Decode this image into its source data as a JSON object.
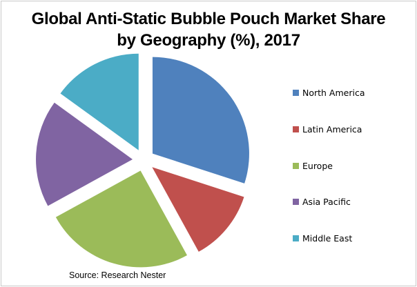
{
  "chart_data": {
    "type": "pie",
    "title": "Global Anti-Static Bubble Pouch Market Share by Geography (%), 2017",
    "title_lines": [
      "Global Anti-Static Bubble Pouch Market Share",
      "by Geography (%), 2017"
    ],
    "categories": [
      "North America",
      "Latin America",
      "Europe",
      "Asia Pacific",
      "Middle East"
    ],
    "values": [
      30,
      12,
      25,
      18,
      15
    ],
    "colors": [
      "#4F81BD",
      "#C0504D",
      "#9BBB59",
      "#8064A2",
      "#4BACC6"
    ],
    "exploded": true,
    "start_angle_deg": 0,
    "direction": "clockwise",
    "legend_position": "right",
    "data_labels": false
  },
  "source": "Source: Research Nester"
}
